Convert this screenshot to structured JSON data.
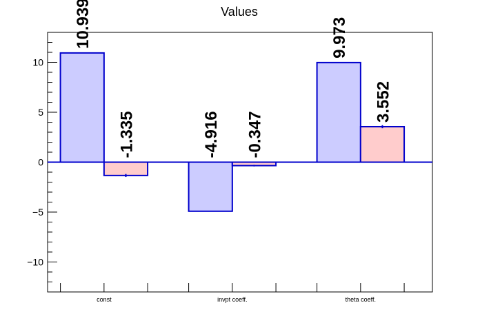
{
  "chart_data": {
    "type": "bar",
    "title": "Values",
    "xlabel": "",
    "ylabel": "",
    "categories": [
      "const",
      "invpt coeff.",
      "theta coeff."
    ],
    "ylim": [
      -13,
      13
    ],
    "yticks": [
      -10,
      -5,
      0,
      5,
      10
    ],
    "yticks_labels": [
      "−10",
      "−5",
      "0",
      "5",
      "10"
    ],
    "grid": false,
    "legend": "none",
    "series": [
      {
        "values": [
          10.939,
          -4.916,
          9.973
        ],
        "errors": [
          0.0,
          0.0,
          0.0
        ],
        "labels": [
          "10.939",
          "-4.916",
          "9.973"
        ],
        "fill": "#ccccff",
        "stroke": "#0000cc"
      },
      {
        "values": [
          -1.335,
          -0.347,
          3.552
        ],
        "errors": [
          0.15,
          0.08,
          0.15
        ],
        "labels": [
          "-1.335",
          "-0.347",
          "3.552"
        ],
        "fill": "#ffcccc",
        "stroke": "#0000cc"
      }
    ]
  }
}
